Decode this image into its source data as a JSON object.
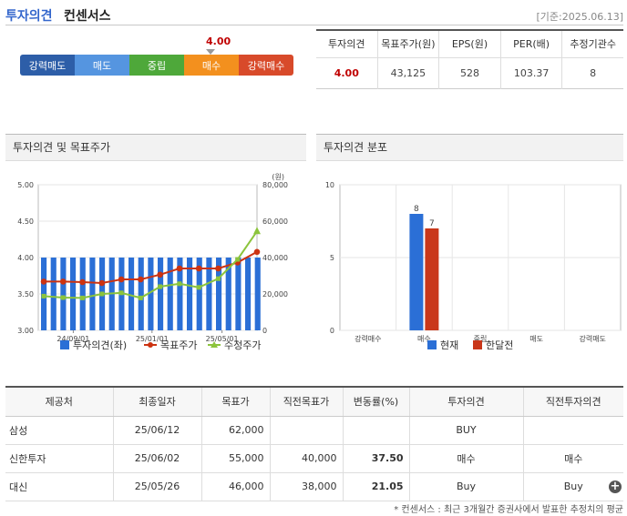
{
  "header": {
    "title_main": "투자의견",
    "title_sub": "컨센서스",
    "date": "[기준:2025.06.13]"
  },
  "scale": {
    "value": "4.00",
    "segments": [
      {
        "label": "강력매도",
        "color": "#2d5ea8"
      },
      {
        "label": "매도",
        "color": "#5595e0"
      },
      {
        "label": "중립",
        "color": "#4ea83a"
      },
      {
        "label": "매수",
        "color": "#f3901e"
      },
      {
        "label": "강력매수",
        "color": "#d84a2a"
      }
    ]
  },
  "summary": {
    "headers": [
      "투자의견",
      "목표주가(원)",
      "EPS(원)",
      "PER(배)",
      "추정기관수"
    ],
    "values": [
      "4.00",
      "43,125",
      "528",
      "103.37",
      "8"
    ]
  },
  "panels": {
    "left_title": "투자의견 및 목표주가",
    "right_title": "투자의견 분포"
  },
  "chart_data": [
    {
      "type": "bar+line",
      "title": "투자의견 및 목표주가",
      "y_left_ticks": [
        "5.00",
        "4.50",
        "4.00",
        "3.50",
        "3.00"
      ],
      "y_left_range": [
        3.0,
        5.0
      ],
      "y_right_unit": "(원)",
      "y_right_ticks": [
        "80,000",
        "60,000",
        "40,000",
        "20,000",
        "0"
      ],
      "y_right_range": [
        0,
        80000
      ],
      "x_tick_labels": [
        "24/09/01",
        "25/01/01",
        "25/05/01"
      ],
      "bars": {
        "name": "투자의견(좌)",
        "color": "#2b6fd6",
        "values": [
          4,
          4,
          4,
          4,
          4,
          4,
          4,
          4,
          4,
          4,
          4,
          4,
          4,
          4,
          4,
          4,
          4,
          4,
          4,
          4,
          4,
          4,
          4,
          4,
          4,
          4,
          4,
          4,
          4,
          4,
          4,
          4,
          4,
          4,
          4,
          4,
          4,
          4,
          4,
          4,
          4,
          4,
          4,
          4,
          4
        ]
      },
      "series": [
        {
          "name": "목표주가",
          "color": "#cc3311",
          "values": [
            26800,
            26800,
            26500,
            26000,
            28000,
            28000,
            30600,
            34000,
            34000,
            34000,
            37300,
            43100
          ]
        },
        {
          "name": "수정주가",
          "color": "#8cc43c",
          "values": [
            18800,
            18000,
            17800,
            20000,
            20600,
            17800,
            24000,
            25600,
            23600,
            28400,
            39000,
            54400
          ]
        }
      ],
      "legend_position": "bottom"
    },
    {
      "type": "bar",
      "title": "투자의견 분포",
      "categories": [
        "강력매수",
        "매수",
        "중립",
        "매도",
        "강력매도"
      ],
      "y_ticks": [
        "10",
        "5",
        "0"
      ],
      "ylim": [
        0,
        10
      ],
      "series": [
        {
          "name": "현재",
          "color": "#2b6fd6",
          "values": [
            0,
            8,
            0,
            0,
            0
          ]
        },
        {
          "name": "한달전",
          "color": "#c9371a",
          "values": [
            0,
            7,
            0,
            0,
            0
          ]
        }
      ],
      "legend_position": "bottom"
    }
  ],
  "table": {
    "headers": [
      "제공처",
      "최종일자",
      "목표가",
      "직전목표가",
      "변동률(%)",
      "투자의견",
      "직전투자의견"
    ],
    "rows": [
      [
        "삼성",
        "25/06/12",
        "62,000",
        "",
        "",
        "BUY",
        ""
      ],
      [
        "신한투자",
        "25/06/02",
        "55,000",
        "40,000",
        "37.50",
        "매수",
        "매수"
      ],
      [
        "대신",
        "25/05/26",
        "46,000",
        "38,000",
        "21.05",
        "Buy",
        "Buy"
      ]
    ],
    "more_icon": "plus-circle-icon"
  },
  "footnote": "* 컨센서스 : 최근 3개월간 증권사에서 발표한 추정치의 평균"
}
